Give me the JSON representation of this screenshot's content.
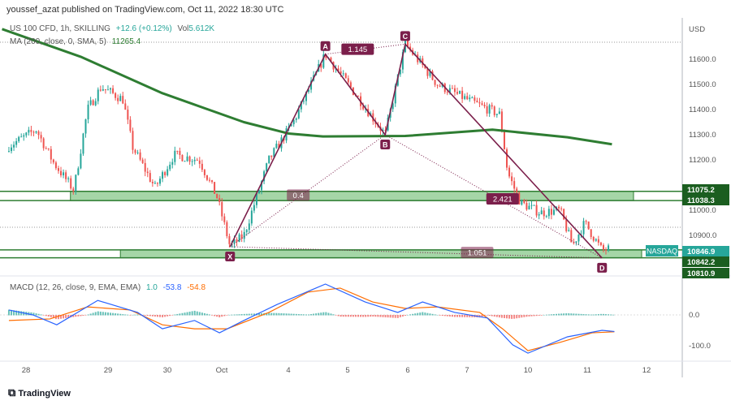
{
  "header": {
    "published": "youssef_azat published on TradingView.com, Oct 11, 2022 18:30 UTC"
  },
  "legend": {
    "symbol": "US 100 CFD, 1h, SKILLING",
    "change": "+12.6 (+0.12%)",
    "vol_label": "Vol",
    "vol": "5.612K",
    "ma_label": "MA (200, close, 0, SMA, 5)",
    "ma_value": "11265.4",
    "macd_label": "MACD (12, 26, close, 9, EMA, EMA)",
    "macd_hist": "1.0",
    "macd_line": "-53.8",
    "macd_signal": "-54.8"
  },
  "price_axis": {
    "currency": "USD",
    "ticks": [
      "11600.0",
      "11500.0",
      "11400.0",
      "11300.0",
      "11200.0",
      "11000.0",
      "10900.0"
    ],
    "badges": [
      {
        "value": "11075.2",
        "color": "#1b5e20"
      },
      {
        "value": "11038.3",
        "color": "#1b5e20"
      },
      {
        "value": "10846.9",
        "color": "#26a69a",
        "tag": "NASDAQ"
      },
      {
        "value": "10842.2",
        "color": "#1b5e20"
      },
      {
        "value": "10810.9",
        "color": "#1b5e20"
      }
    ]
  },
  "macd_axis": {
    "ticks": [
      "0.0",
      "-100.0"
    ]
  },
  "time_axis": {
    "ticks": [
      "28",
      "29",
      "30",
      "Oct",
      "4",
      "5",
      "6",
      "7",
      "10",
      "11",
      "12"
    ]
  },
  "footer": {
    "brand": "TradingView"
  },
  "colors": {
    "up": "#26a69a",
    "down": "#ef5350",
    "ma": "#2e7d32",
    "zone": "#a5d6a7",
    "pattern": "#7b1f4b",
    "macd": "#2962ff",
    "signal": "#ff6d00"
  },
  "chart_data": {
    "type": "candlestick",
    "symbol": "US 100 CFD",
    "interval": "1h",
    "price_path": [
      [
        "2022-09-27 19:00",
        11255
      ],
      [
        "2022-09-28 03:00",
        11320
      ],
      [
        "2022-09-28 08:00",
        11190
      ],
      [
        "2022-09-28 14:00",
        11080
      ],
      [
        "2022-09-28 18:00",
        11400
      ],
      [
        "2022-09-28 22:00",
        11490
      ],
      [
        "2022-09-29 06:00",
        11440
      ],
      [
        "2022-09-29 10:00",
        11250
      ],
      [
        "2022-09-29 19:00",
        11090
      ],
      [
        "2022-09-30 03:00",
        11220
      ],
      [
        "2022-09-30 14:00",
        11200
      ],
      [
        "2022-09-30 22:00",
        11050
      ],
      [
        "2022-10-03 03:00",
        10855
      ],
      [
        "2022-10-03 08:00",
        10900
      ],
      [
        "2022-10-03 17:00",
        11200
      ],
      [
        "2022-10-04 02:00",
        11350
      ],
      [
        "2022-10-04 15:00",
        11620
      ],
      [
        "2022-10-05 04:00",
        11450
      ],
      [
        "2022-10-05 15:00",
        11300
      ],
      [
        "2022-10-05 23:00",
        11660
      ],
      [
        "2022-10-06 12:00",
        11500
      ],
      [
        "2022-10-07 02:00",
        11430
      ],
      [
        "2022-10-07 13:00",
        11380
      ],
      [
        "2022-10-07 16:00",
        11150
      ],
      [
        "2022-10-07 21:00",
        11030
      ],
      [
        "2022-10-10 05:00",
        10990
      ],
      [
        "2022-10-10 13:00",
        11000
      ],
      [
        "2022-10-10 18:00",
        10860
      ],
      [
        "2022-10-10 23:00",
        10950
      ],
      [
        "2022-10-11 06:00",
        10840
      ],
      [
        "2022-10-11 09:00",
        10846.9
      ]
    ],
    "ma200": [
      [
        "2022-09-27 17:00",
        11720
      ],
      [
        "2022-09-28 16:00",
        11610
      ],
      [
        "2022-09-29 22:00",
        11465
      ],
      [
        "2022-10-03 08:00",
        11350
      ],
      [
        "2022-10-04 00:00",
        11305
      ],
      [
        "2022-10-04 14:00",
        11293
      ],
      [
        "2022-10-05 23:00",
        11295
      ],
      [
        "2022-10-07 10:00",
        11320
      ],
      [
        "2022-10-10 16:00",
        11290
      ],
      [
        "2022-10-11 10:00",
        11262
      ]
    ],
    "zones": [
      {
        "top": 11075.2,
        "bottom": 11038.3,
        "from": "2022-09-28 13:00"
      },
      {
        "top": 10842.2,
        "bottom": 10810.9,
        "from": "2022-09-29 05:00"
      }
    ],
    "harmonic": {
      "points": [
        {
          "label": "X",
          "time": "2022-10-03 03:00",
          "price": 10855
        },
        {
          "label": "A",
          "time": "2022-10-04 15:00",
          "price": 11620
        },
        {
          "label": "B",
          "time": "2022-10-05 15:00",
          "price": 11300
        },
        {
          "label": "C",
          "time": "2022-10-05 23:00",
          "price": 11660
        },
        {
          "label": "D",
          "time": "2022-10-11 06:00",
          "price": 10810
        }
      ],
      "ratios": [
        {
          "label": "0.4",
          "time": "2022-10-04 04:00",
          "price": 11060
        },
        {
          "label": "1.145",
          "time": "2022-10-05 04:00",
          "price": 11640
        },
        {
          "label": "2.421",
          "time": "2022-10-07 14:00",
          "price": 11045
        },
        {
          "label": "1.051",
          "time": "2022-10-07 04:00",
          "price": 10832
        }
      ]
    },
    "macd": [
      [
        "2022-09-27 19:00",
        16
      ],
      [
        "2022-09-28 02:00",
        0
      ],
      [
        "2022-09-28 09:00",
        -32
      ],
      [
        "2022-09-28 21:00",
        47
      ],
      [
        "2022-09-29 12:00",
        8
      ],
      [
        "2022-09-29 22:00",
        -45
      ],
      [
        "2022-09-30 12:00",
        -18
      ],
      [
        "2022-09-30 23:00",
        -58
      ],
      [
        "2022-10-03 08:00",
        -18
      ],
      [
        "2022-10-03 20:00",
        34
      ],
      [
        "2022-10-04 15:00",
        100
      ],
      [
        "2022-10-05 07:00",
        42
      ],
      [
        "2022-10-05 20:00",
        8
      ],
      [
        "2022-10-06 06:00",
        42
      ],
      [
        "2022-10-06 19:00",
        8
      ],
      [
        "2022-10-07 08:00",
        -10
      ],
      [
        "2022-10-07 18:00",
        -97
      ],
      [
        "2022-10-10 00:00",
        -124
      ],
      [
        "2022-10-10 16:00",
        -71
      ],
      [
        "2022-10-11 06:00",
        -50
      ],
      [
        "2022-10-11 11:00",
        -53.8
      ]
    ],
    "signal": [
      [
        "2022-09-27 19:00",
        -18
      ],
      [
        "2022-09-28 07:00",
        -13
      ],
      [
        "2022-09-28 18:00",
        26
      ],
      [
        "2022-09-29 09:00",
        16
      ],
      [
        "2022-09-29 22:00",
        -32
      ],
      [
        "2022-09-30 12:00",
        -45
      ],
      [
        "2022-10-03 02:00",
        -45
      ],
      [
        "2022-10-03 17:00",
        8
      ],
      [
        "2022-10-04 08:00",
        74
      ],
      [
        "2022-10-04 21:00",
        87
      ],
      [
        "2022-10-05 10:00",
        42
      ],
      [
        "2022-10-05 23:00",
        21
      ],
      [
        "2022-10-06 12:00",
        26
      ],
      [
        "2022-10-07 05:00",
        8
      ],
      [
        "2022-10-07 14:00",
        -45
      ],
      [
        "2022-10-10 00:00",
        -116
      ],
      [
        "2022-10-10 13:00",
        -89
      ],
      [
        "2022-10-11 02:00",
        -58
      ],
      [
        "2022-10-11 11:00",
        -54.8
      ]
    ],
    "ylim": [
      10780,
      11720
    ],
    "macd_ylim": [
      -160,
      120
    ]
  }
}
